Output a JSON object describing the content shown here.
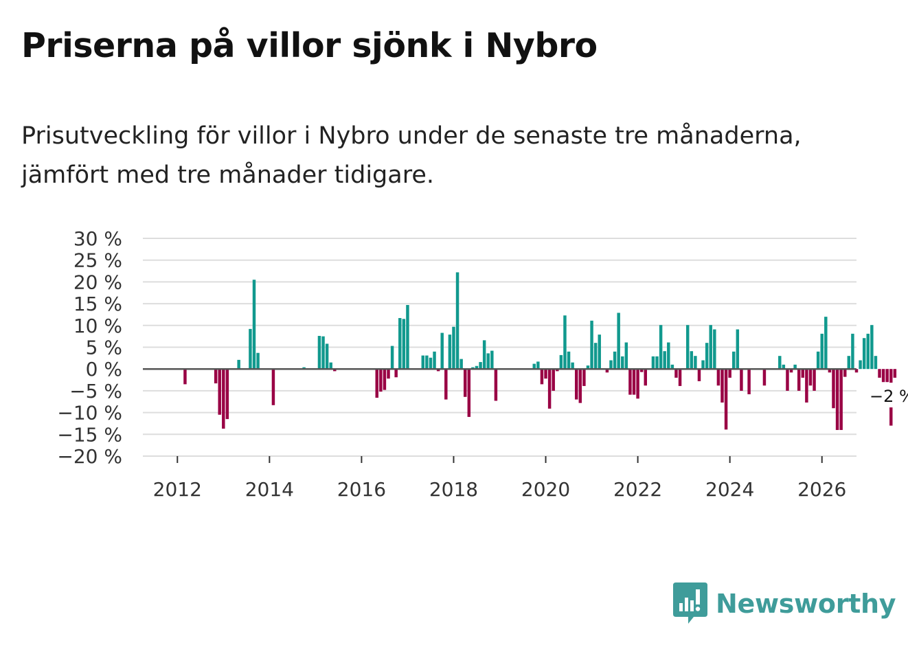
{
  "title": "Priserna på villor sjönk i Nybro",
  "subtitle": "Prisutveckling för villor i Nybro under de senaste tre månaderna, jämfört med tre månader tidigare.",
  "brand": {
    "name": "Newsworthy",
    "icon": "newsworthy-logo-icon",
    "color": "#3f9c9a"
  },
  "colors": {
    "positive": "#11998e",
    "negative": "#990044",
    "grid": "#dddddd",
    "zero": "#555555"
  },
  "chart_data": {
    "type": "bar",
    "title": "Priserna på villor sjönk i Nybro",
    "xlabel": "",
    "ylabel": "",
    "ylim": [
      -20,
      30
    ],
    "yticks": [
      30,
      25,
      20,
      15,
      10,
      5,
      0,
      -5,
      -10,
      -15,
      -20
    ],
    "ytick_labels": [
      "30 %",
      "25 %",
      "20 %",
      "15 %",
      "10 %",
      "5 %",
      "0 %",
      "−5 %",
      "−10 %",
      "−15 %",
      "−20 %"
    ],
    "xlim": [
      2011.25,
      2026.75
    ],
    "xticks": [
      2012,
      2014,
      2016,
      2018,
      2020,
      2022,
      2024,
      2026
    ],
    "xtick_labels": [
      "2012",
      "2014",
      "2016",
      "2018",
      "2020",
      "2022",
      "2024",
      "2026"
    ],
    "series_start": 2011.5,
    "step_months": 1,
    "values": [
      0,
      0,
      0,
      0,
      0,
      0,
      0,
      0,
      -3.5,
      0,
      0,
      0,
      0,
      0,
      0,
      0,
      -3.3,
      -10.5,
      -13.7,
      -11.5,
      0,
      0,
      2.1,
      0,
      0,
      9.2,
      20.5,
      3.7,
      0,
      0,
      0,
      -8.3,
      0,
      0,
      0,
      0,
      0,
      0,
      0,
      0.4,
      0,
      0,
      0,
      7.6,
      7.5,
      5.8,
      1.5,
      -0.5,
      0,
      0,
      0,
      0,
      0,
      0,
      0,
      0,
      0,
      0,
      -6.6,
      -5.2,
      -4.8,
      -2.2,
      5.3,
      -1.9,
      11.7,
      11.5,
      14.7,
      0,
      0,
      0,
      3.1,
      3.1,
      2.6,
      4.0,
      -0.5,
      8.3,
      -7.0,
      7.9,
      9.7,
      22.2,
      2.3,
      -6.4,
      -11.0,
      0.4,
      0.7,
      1.6,
      6.6,
      3.6,
      4.2,
      -7.3,
      0,
      0,
      0,
      0,
      0,
      0,
      0,
      0,
      0,
      1.2,
      1.7,
      -3.5,
      -2.2,
      -9.1,
      -5.0,
      -0.5,
      3.2,
      12.3,
      4.0,
      1.5,
      -7.0,
      -7.8,
      -3.9,
      0.8,
      11.1,
      6.0,
      7.9,
      0,
      -0.8,
      2.0,
      4.0,
      12.9,
      2.9,
      6.1,
      -5.9,
      -5.9,
      -6.8,
      -0.7,
      -3.8,
      0,
      2.9,
      2.9,
      10.1,
      4.1,
      6.1,
      1.0,
      -2.0,
      -3.9,
      0,
      10.1,
      4.1,
      3.0,
      -2.8,
      2.0,
      6.0,
      10.1,
      9.1,
      -3.8,
      -7.7,
      -13.9,
      -2.0,
      4.0,
      9.1,
      -5.0,
      0,
      -5.8,
      0,
      0,
      0,
      -3.8,
      0,
      0,
      0,
      3.0,
      1.0,
      -5.0,
      -0.8,
      1.0,
      -5.0,
      -2.0,
      -7.7,
      -3.8,
      -5.0,
      4.0,
      8.1,
      12.0,
      -0.8,
      -9.0,
      -14.0,
      -14.0,
      -1.8,
      3.0,
      8.1,
      -0.8,
      2.0,
      7.1,
      8.1,
      10.1,
      3.0,
      -2.0,
      -3.0,
      -3.0,
      -13.0,
      -2.0
    ],
    "last_value_label": "−2 %"
  }
}
